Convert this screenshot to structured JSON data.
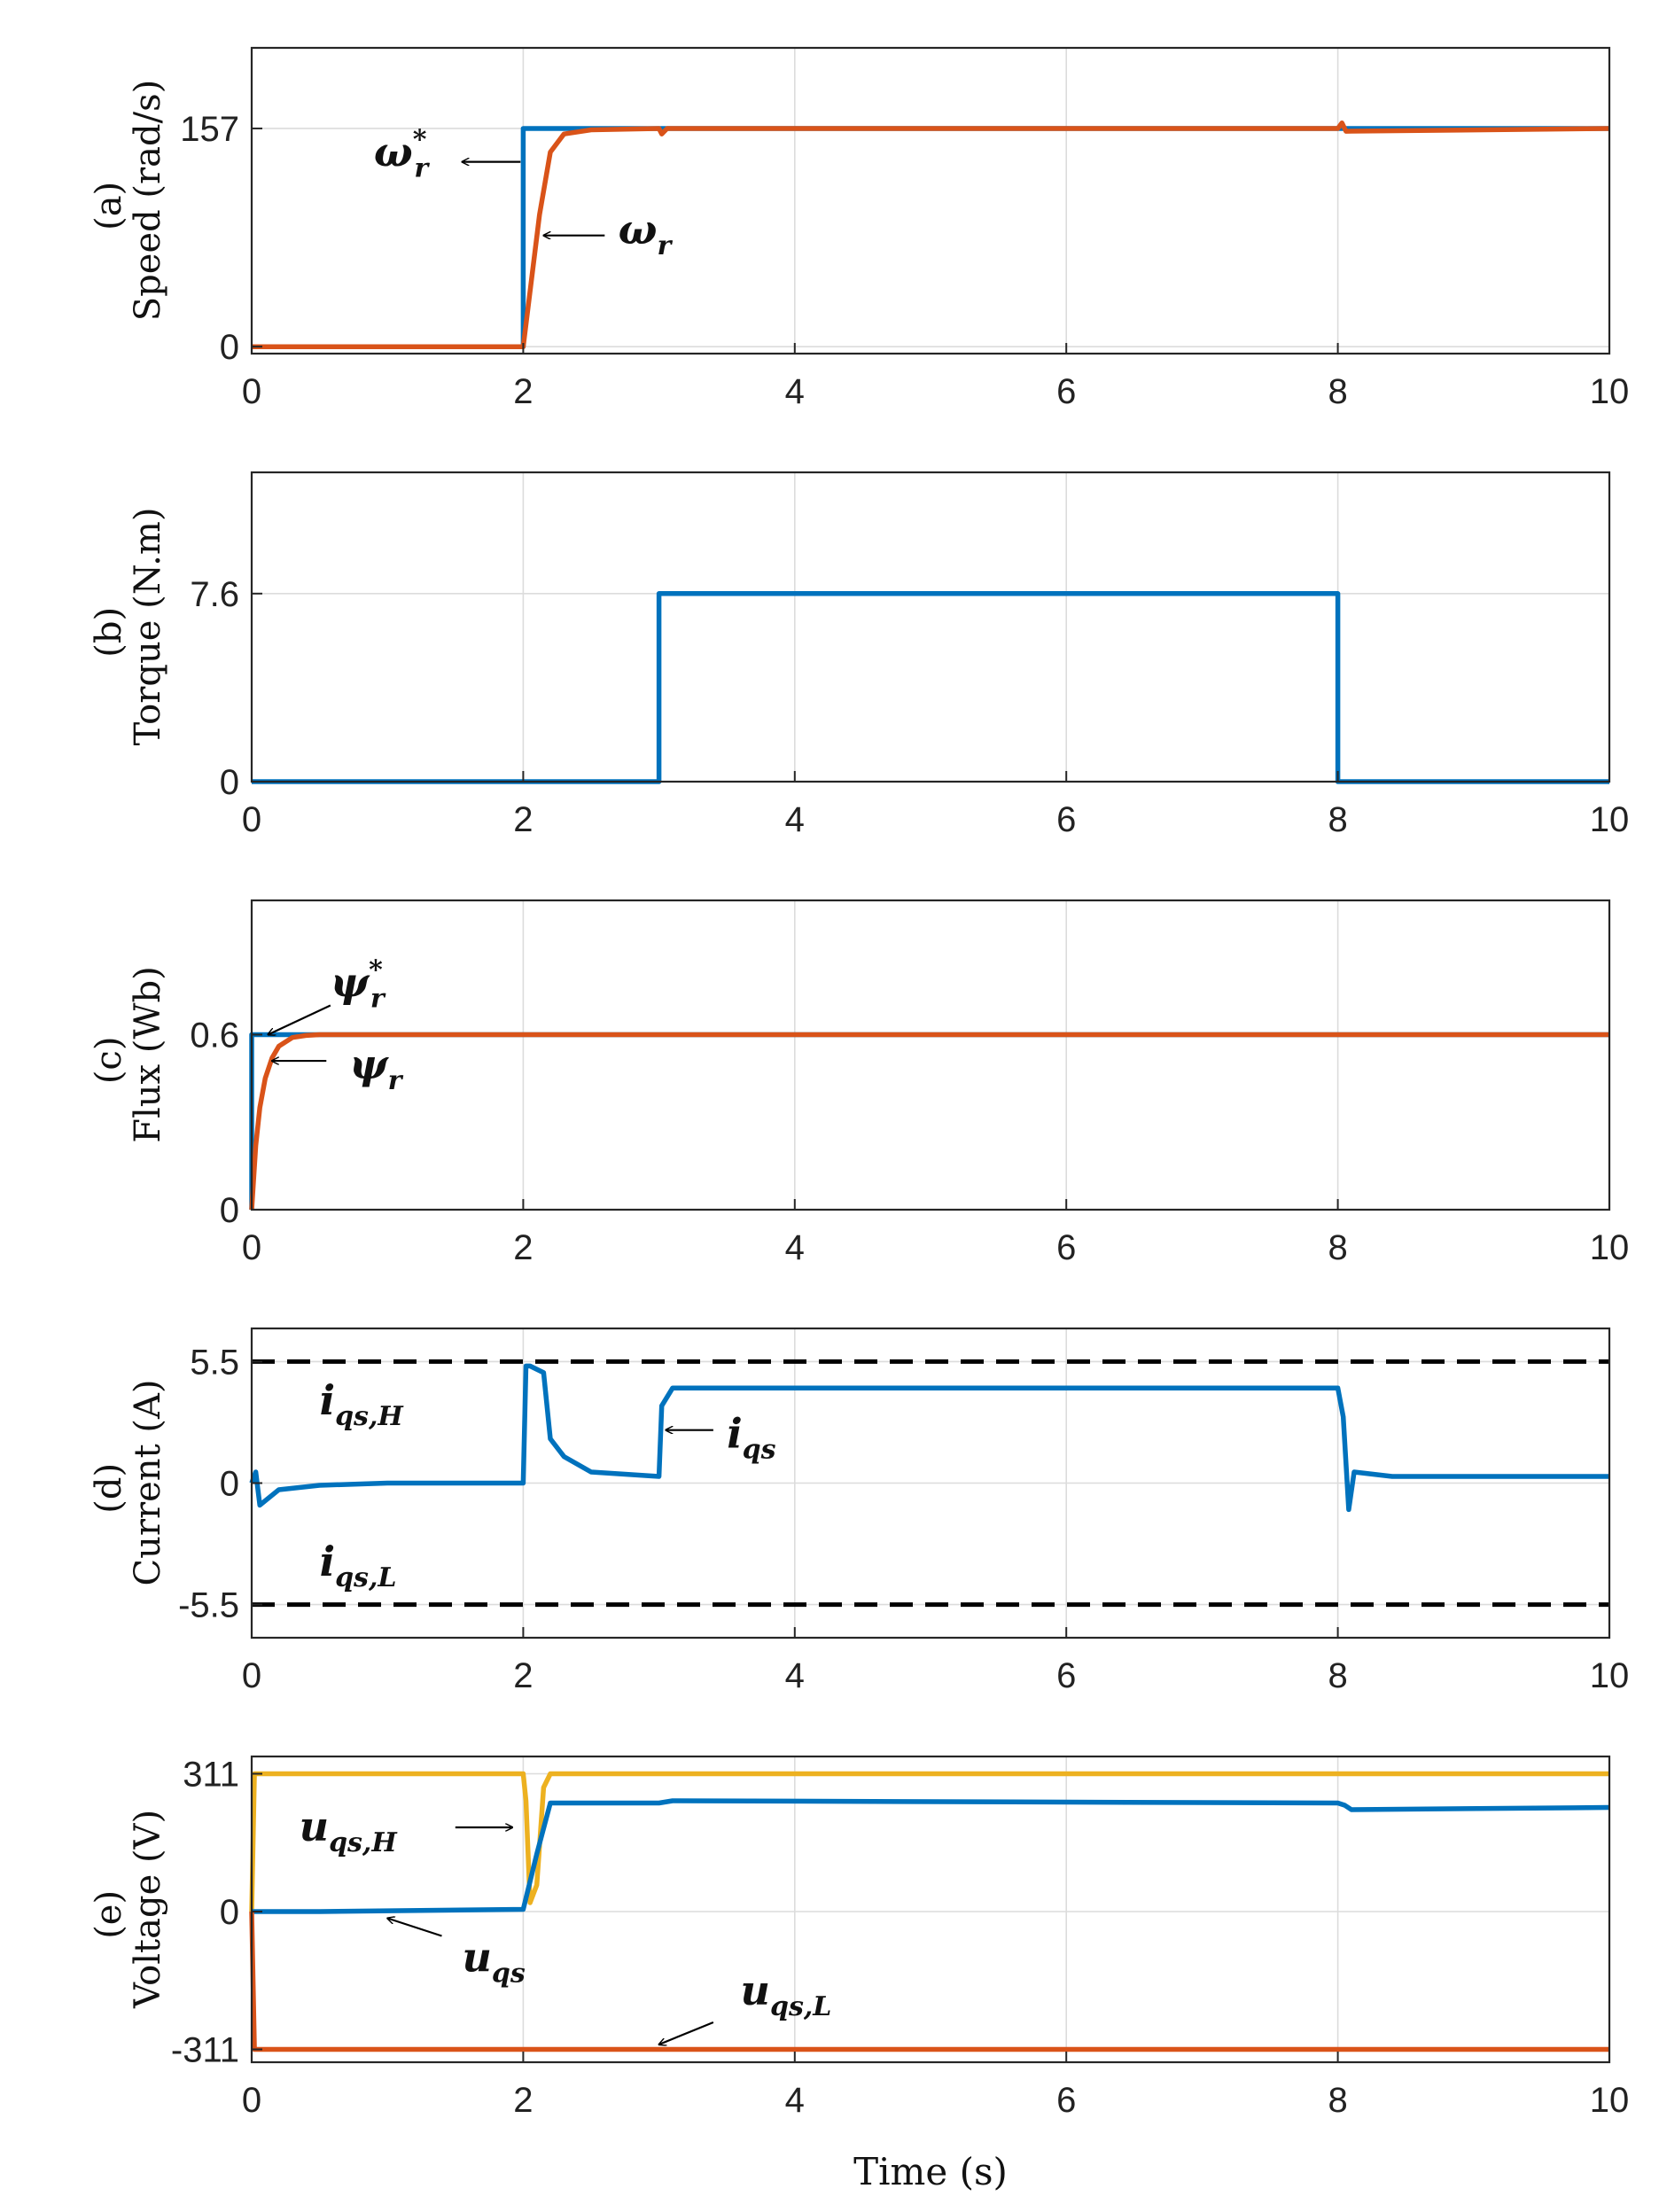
{
  "chart_data": [
    {
      "type": "line",
      "panel_label": "(a)",
      "ylabel": "Speed (rad/s)",
      "xlim": [
        0,
        10
      ],
      "ylim": [
        -5,
        215
      ],
      "xticks": [
        "0",
        "2",
        "4",
        "6",
        "8",
        "10"
      ],
      "yticks": [
        "0",
        "157"
      ],
      "ytick_values": [
        0,
        157
      ],
      "grid": true,
      "series": [
        {
          "name": "ω_r*",
          "color": "#0072BD",
          "x": [
            0,
            2.0,
            2.0,
            10
          ],
          "y": [
            0,
            0,
            157,
            157
          ]
        },
        {
          "name": "ω_r",
          "color": "#D95319",
          "x": [
            0,
            2.0,
            2.12,
            2.2,
            2.3,
            2.5,
            3.0,
            3.02,
            3.06,
            8.0,
            8.03,
            8.06,
            10
          ],
          "y": [
            0,
            0,
            95,
            140,
            153,
            156,
            157,
            153,
            157,
            157,
            161,
            155,
            157
          ]
        }
      ],
      "annotations": [
        {
          "base": "ω",
          "sub": "r",
          "sup": "*",
          "text_x": 0.9,
          "text_y": 130,
          "arrow_from": [
            1.98,
            133
          ],
          "arrow_to": [
            1.55,
            133
          ]
        },
        {
          "base": "ω",
          "sub": "r",
          "sup": "",
          "text_x": 2.7,
          "text_y": 74,
          "arrow_from": [
            2.6,
            80
          ],
          "arrow_to": [
            2.15,
            80
          ]
        }
      ]
    },
    {
      "type": "line",
      "panel_label": "(b)",
      "ylabel": "Torque (N.m)",
      "xlim": [
        0,
        10
      ],
      "ylim": [
        0,
        12.5
      ],
      "xticks": [
        "0",
        "2",
        "4",
        "6",
        "8",
        "10"
      ],
      "yticks": [
        "0",
        "7.6"
      ],
      "ytick_values": [
        0,
        7.6
      ],
      "grid": true,
      "series": [
        {
          "name": "",
          "color": "#0072BD",
          "x": [
            0,
            3.0,
            3.0,
            8.0,
            8.0,
            10
          ],
          "y": [
            0,
            0,
            7.6,
            7.6,
            0,
            0
          ]
        }
      ],
      "annotations": []
    },
    {
      "type": "line",
      "panel_label": "(c)",
      "ylabel": "Flux (Wb)",
      "xlim": [
        0,
        10
      ],
      "ylim": [
        0,
        1.06
      ],
      "xticks": [
        "0",
        "2",
        "4",
        "6",
        "8",
        "10"
      ],
      "yticks": [
        "0",
        "0.6"
      ],
      "ytick_values": [
        0,
        0.6
      ],
      "grid": true,
      "series": [
        {
          "name": "ψ_r*",
          "color": "#0072BD",
          "x": [
            0,
            0.0,
            10
          ],
          "y": [
            0,
            0.6,
            0.6
          ]
        },
        {
          "name": "ψ_r",
          "color": "#D95319",
          "x": [
            0,
            0.03,
            0.06,
            0.1,
            0.15,
            0.2,
            0.3,
            0.4,
            0.5,
            10
          ],
          "y": [
            0,
            0.22,
            0.35,
            0.45,
            0.52,
            0.56,
            0.59,
            0.597,
            0.6,
            0.6
          ]
        }
      ],
      "annotations": [
        {
          "base": "ψ",
          "sub": "r",
          "sup": "*",
          "text_x": 0.58,
          "text_y": 0.73,
          "arrow_from": [
            0.58,
            0.7
          ],
          "arrow_to": [
            0.12,
            0.6
          ]
        },
        {
          "base": "ψ",
          "sub": "r",
          "sup": "",
          "text_x": 0.72,
          "text_y": 0.45,
          "arrow_from": [
            0.55,
            0.51
          ],
          "arrow_to": [
            0.15,
            0.51
          ]
        }
      ]
    },
    {
      "type": "line",
      "panel_label": "(d)",
      "ylabel": "Current (A)",
      "xlim": [
        0,
        10
      ],
      "ylim": [
        -7,
        7
      ],
      "xticks": [
        "0",
        "2",
        "4",
        "6",
        "8",
        "10"
      ],
      "yticks": [
        "-5.5",
        "0",
        "5.5"
      ],
      "ytick_values": [
        -5.5,
        0,
        5.5
      ],
      "grid": true,
      "series": [
        {
          "name": "i_qs",
          "color": "#0072BD",
          "x": [
            0,
            0.03,
            0.06,
            0.2,
            0.5,
            1.0,
            2.0,
            2.02,
            2.05,
            2.15,
            2.2,
            2.3,
            2.5,
            3.0,
            3.02,
            3.1,
            3.5,
            5.0,
            7.0,
            8.0,
            8.04,
            8.08,
            8.12,
            8.4,
            10
          ],
          "y": [
            0,
            0.5,
            -1.0,
            -0.3,
            -0.1,
            0,
            0,
            5.3,
            5.3,
            5.0,
            2.0,
            1.2,
            0.5,
            0.3,
            3.5,
            4.3,
            4.3,
            4.3,
            4.3,
            4.3,
            3.0,
            -1.2,
            0.5,
            0.3,
            0.3
          ]
        },
        {
          "name": "i_qs,H",
          "color": "#000000",
          "dash": true,
          "x": [
            0,
            10
          ],
          "y": [
            5.5,
            5.5
          ]
        },
        {
          "name": "i_qs,L",
          "color": "#000000",
          "dash": true,
          "x": [
            0,
            10
          ],
          "y": [
            -5.5,
            -5.5
          ]
        }
      ],
      "annotations": [
        {
          "base": "i",
          "sub": "qs,H",
          "sup": "",
          "text_x": 0.5,
          "text_y": 3.1
        },
        {
          "base": "i",
          "sub": "qs",
          "sup": "",
          "text_x": 3.5,
          "text_y": 1.6,
          "arrow_from": [
            3.4,
            2.4
          ],
          "arrow_to": [
            3.05,
            2.4
          ]
        },
        {
          "base": "i",
          "sub": "qs,L",
          "sup": "",
          "text_x": 0.5,
          "text_y": -4.2
        }
      ]
    },
    {
      "type": "line",
      "panel_label": "(e)",
      "ylabel": "Voltage (V)",
      "xlabel": "Time (s)",
      "xlim": [
        0,
        10
      ],
      "ylim": [
        -340,
        350
      ],
      "xticks": [
        "0",
        "2",
        "4",
        "6",
        "8",
        "10"
      ],
      "yticks": [
        "-311",
        "0",
        "311"
      ],
      "ytick_values": [
        -311,
        0,
        311
      ],
      "grid": true,
      "series": [
        {
          "name": "u_qs,H",
          "color": "#EDB120",
          "x": [
            0,
            0.02,
            2.0,
            2.02,
            2.05,
            2.1,
            2.15,
            2.2,
            10
          ],
          "y": [
            0,
            311,
            311,
            250,
            20,
            60,
            280,
            311,
            311
          ]
        },
        {
          "name": "u_qs",
          "color": "#0072BD",
          "x": [
            0,
            0.05,
            0.5,
            2.0,
            2.1,
            2.2,
            3.0,
            3.1,
            8.0,
            8.05,
            8.1,
            10
          ],
          "y": [
            0,
            0,
            0,
            5,
            130,
            245,
            245,
            250,
            245,
            240,
            230,
            235
          ]
        },
        {
          "name": "u_qs,L",
          "color": "#D95319",
          "x": [
            0,
            0.02,
            10
          ],
          "y": [
            0,
            -311,
            -311
          ]
        }
      ],
      "annotations": [
        {
          "base": "u",
          "sub": "qs,H",
          "sup": "",
          "text_x": 0.35,
          "text_y": 160,
          "arrow_from": [
            1.5,
            190
          ],
          "arrow_to": [
            1.92,
            190
          ]
        },
        {
          "base": "u",
          "sub": "qs",
          "sup": "",
          "text_x": 1.55,
          "text_y": -135,
          "arrow_from": [
            1.4,
            -55
          ],
          "arrow_to": [
            1.0,
            -15
          ]
        },
        {
          "base": "u",
          "sub": "qs,L",
          "sup": "",
          "text_x": 3.6,
          "text_y": -210,
          "arrow_from": [
            3.4,
            -250
          ],
          "arrow_to": [
            3.0,
            -300
          ]
        }
      ]
    }
  ]
}
